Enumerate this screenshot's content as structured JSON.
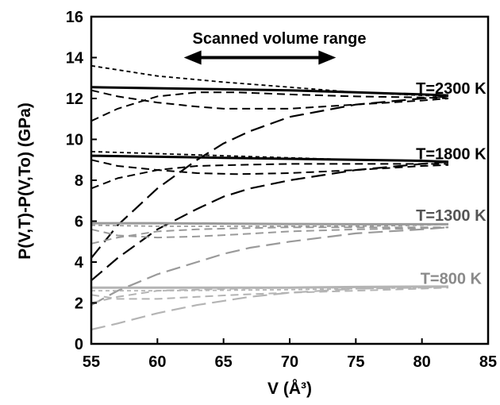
{
  "chart_data": {
    "type": "line",
    "title": "",
    "xlabel": "V (Å³)",
    "ylabel": "P(V,T)-P(V,To) (GPa)",
    "xlim": [
      55,
      85
    ],
    "ylim": [
      0,
      16
    ],
    "xticks": [
      55,
      60,
      65,
      70,
      75,
      80,
      85
    ],
    "yticks": [
      0,
      2,
      4,
      6,
      8,
      10,
      12,
      14,
      16
    ],
    "grid": false,
    "legend": "none",
    "annotations": {
      "scanned_range": {
        "text": "Scanned volume range",
        "x_from": 62,
        "x_to": 73.5,
        "y": 14.0
      },
      "temperature_labels": [
        {
          "text": "T=2300 K",
          "x": 82.2,
          "y": 12.5,
          "color": "#000000"
        },
        {
          "text": "T=1800 K",
          "x": 82.2,
          "y": 9.3,
          "color": "#000000"
        },
        {
          "text": "T=1300 K",
          "x": 82.2,
          "y": 6.3,
          "color": "#555555"
        },
        {
          "text": "T=800 K",
          "x": 82.2,
          "y": 3.2,
          "color": "#8a8a8a"
        }
      ]
    },
    "series": [
      {
        "group": "T=2300 K",
        "style": "solid",
        "color": "#000000",
        "x": [
          55,
          60,
          65,
          70,
          75,
          80,
          82
        ],
        "y": [
          12.55,
          12.5,
          12.45,
          12.4,
          12.3,
          12.2,
          12.15
        ]
      },
      {
        "group": "T=2300 K",
        "style": "short-dash",
        "color": "#000000",
        "x": [
          55,
          60,
          65,
          70,
          75,
          80,
          82
        ],
        "y": [
          13.6,
          13.1,
          12.8,
          12.55,
          12.3,
          12.15,
          12.1
        ]
      },
      {
        "group": "T=2300 K",
        "style": "dash",
        "color": "#000000",
        "x": [
          55,
          57,
          60,
          63,
          65,
          70,
          75,
          80,
          82
        ],
        "y": [
          12.4,
          12.1,
          11.8,
          11.6,
          11.5,
          11.5,
          11.7,
          11.9,
          12.0
        ]
      },
      {
        "group": "T=2300 K",
        "style": "dash",
        "color": "#000000",
        "x": [
          55,
          57,
          60,
          63,
          66,
          70,
          75,
          80,
          82
        ],
        "y": [
          10.9,
          11.5,
          12.1,
          12.3,
          12.3,
          12.2,
          12.1,
          12.05,
          12.0
        ]
      },
      {
        "group": "T=2300 K",
        "style": "long-dash",
        "color": "#000000",
        "x": [
          55,
          57,
          60,
          63,
          65,
          67,
          70,
          75,
          80,
          82
        ],
        "y": [
          4.2,
          5.8,
          7.6,
          9.0,
          9.8,
          10.4,
          11.1,
          11.7,
          12.0,
          12.1
        ]
      },
      {
        "group": "T=1800 K",
        "style": "solid",
        "color": "#000000",
        "x": [
          55,
          60,
          65,
          70,
          75,
          80,
          82
        ],
        "y": [
          9.2,
          9.15,
          9.1,
          9.05,
          9.0,
          8.95,
          8.9
        ]
      },
      {
        "group": "T=1800 K",
        "style": "short-dash",
        "color": "#000000",
        "x": [
          55,
          60,
          65,
          70,
          75,
          80,
          82
        ],
        "y": [
          9.4,
          9.3,
          9.2,
          9.1,
          9.0,
          8.95,
          8.9
        ]
      },
      {
        "group": "T=1800 K",
        "style": "dash",
        "color": "#000000",
        "x": [
          55,
          57,
          60,
          63,
          66,
          70,
          75,
          80,
          82
        ],
        "y": [
          9.0,
          8.7,
          8.5,
          8.35,
          8.3,
          8.35,
          8.5,
          8.7,
          8.75
        ]
      },
      {
        "group": "T=1800 K",
        "style": "dash",
        "color": "#000000",
        "x": [
          55,
          57,
          60,
          63,
          66,
          70,
          75,
          80,
          82
        ],
        "y": [
          7.6,
          8.1,
          8.5,
          8.7,
          8.75,
          8.8,
          8.8,
          8.8,
          8.8
        ]
      },
      {
        "group": "T=1800 K",
        "style": "long-dash",
        "color": "#000000",
        "x": [
          55,
          57,
          60,
          63,
          65,
          67,
          70,
          75,
          80,
          82
        ],
        "y": [
          3.1,
          4.2,
          5.6,
          6.6,
          7.2,
          7.6,
          8.0,
          8.5,
          8.8,
          8.9
        ]
      },
      {
        "group": "T=1300 K",
        "style": "solid",
        "color": "#9a9a9a",
        "x": [
          55,
          60,
          65,
          70,
          75,
          80,
          82
        ],
        "y": [
          5.9,
          5.9,
          5.88,
          5.86,
          5.85,
          5.85,
          5.85
        ]
      },
      {
        "group": "T=1300 K",
        "style": "short-dash",
        "color": "#9a9a9a",
        "x": [
          55,
          60,
          65,
          70,
          75,
          80,
          82
        ],
        "y": [
          5.8,
          5.75,
          5.75,
          5.75,
          5.75,
          5.8,
          5.85
        ]
      },
      {
        "group": "T=1300 K",
        "style": "dash",
        "color": "#9a9a9a",
        "x": [
          55,
          57,
          60,
          63,
          66,
          70,
          75,
          80,
          82
        ],
        "y": [
          5.6,
          5.3,
          5.2,
          5.25,
          5.35,
          5.5,
          5.6,
          5.65,
          5.7
        ]
      },
      {
        "group": "T=1300 K",
        "style": "dash",
        "color": "#9a9a9a",
        "x": [
          55,
          57,
          60,
          63,
          66,
          70,
          75,
          80,
          82
        ],
        "y": [
          4.9,
          5.2,
          5.5,
          5.6,
          5.65,
          5.7,
          5.7,
          5.7,
          5.7
        ]
      },
      {
        "group": "T=1300 K",
        "style": "long-dash",
        "color": "#9a9a9a",
        "x": [
          55,
          57,
          60,
          63,
          65,
          67,
          70,
          75,
          80,
          82
        ],
        "y": [
          1.9,
          2.6,
          3.4,
          4.0,
          4.4,
          4.7,
          5.0,
          5.4,
          5.6,
          5.7
        ]
      },
      {
        "group": "T=800 K",
        "style": "solid",
        "color": "#b4b4b4",
        "x": [
          55,
          60,
          65,
          70,
          75,
          80,
          82
        ],
        "y": [
          2.75,
          2.75,
          2.75,
          2.75,
          2.78,
          2.8,
          2.8
        ]
      },
      {
        "group": "T=800 K",
        "style": "short-dash",
        "color": "#b4b4b4",
        "x": [
          55,
          60,
          65,
          70,
          75,
          80,
          82
        ],
        "y": [
          2.6,
          2.6,
          2.62,
          2.65,
          2.7,
          2.75,
          2.8
        ]
      },
      {
        "group": "T=800 K",
        "style": "dash",
        "color": "#b4b4b4",
        "x": [
          55,
          57,
          60,
          63,
          66,
          70,
          75,
          80,
          82
        ],
        "y": [
          2.4,
          2.2,
          2.2,
          2.3,
          2.4,
          2.5,
          2.6,
          2.7,
          2.75
        ]
      },
      {
        "group": "T=800 K",
        "style": "dash",
        "color": "#b4b4b4",
        "x": [
          55,
          57,
          60,
          63,
          66,
          70,
          75,
          80,
          82
        ],
        "y": [
          2.0,
          2.3,
          2.6,
          2.65,
          2.7,
          2.75,
          2.75,
          2.8,
          2.8
        ]
      },
      {
        "group": "T=800 K",
        "style": "long-dash",
        "color": "#b4b4b4",
        "x": [
          55,
          57,
          60,
          63,
          65,
          67,
          70,
          75,
          80,
          82
        ],
        "y": [
          0.7,
          1.0,
          1.5,
          1.9,
          2.1,
          2.3,
          2.5,
          2.7,
          2.75,
          2.8
        ]
      }
    ]
  }
}
